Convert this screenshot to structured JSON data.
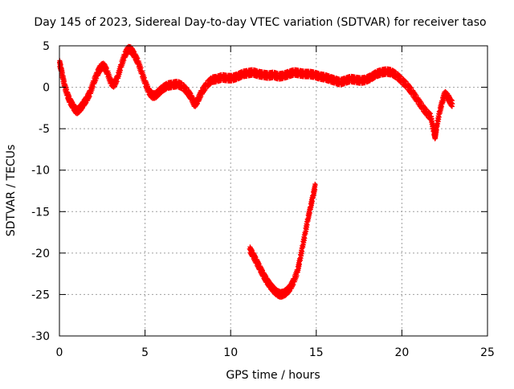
{
  "chart_data": {
    "type": "scatter",
    "title": "Day 145 of 2023, Sidereal Day-to-day VTEC variation (SDTVAR) for receiver taso",
    "xlabel": "GPS time / hours",
    "ylabel": "SDTVAR / TECUs",
    "xlim": [
      0,
      25
    ],
    "ylim": [
      -30,
      5
    ],
    "x_ticks": [
      0,
      5,
      10,
      15,
      20,
      25
    ],
    "y_ticks": [
      5,
      0,
      -5,
      -10,
      -15,
      -20,
      -25,
      -30
    ],
    "x_tick_labels": [
      "0",
      "5",
      "10",
      "15",
      "20",
      "25"
    ],
    "y_tick_labels": [
      "5",
      "0",
      "-5",
      "-10",
      "-15",
      "-20",
      "-25",
      "-30"
    ],
    "grid": true,
    "marker": "+",
    "series": [
      {
        "name": "SDTVAR",
        "color": "#ff0000",
        "points": [
          [
            0.0,
            3.0
          ],
          [
            0.1,
            2.2
          ],
          [
            0.2,
            1.2
          ],
          [
            0.3,
            0.2
          ],
          [
            0.45,
            -0.8
          ],
          [
            0.6,
            -1.6
          ],
          [
            0.8,
            -2.3
          ],
          [
            1.0,
            -2.9
          ],
          [
            1.2,
            -2.6
          ],
          [
            1.4,
            -2.0
          ],
          [
            1.6,
            -1.4
          ],
          [
            1.8,
            -0.6
          ],
          [
            2.0,
            0.6
          ],
          [
            2.2,
            1.6
          ],
          [
            2.4,
            2.4
          ],
          [
            2.6,
            2.6
          ],
          [
            2.8,
            1.8
          ],
          [
            3.0,
            0.6
          ],
          [
            3.2,
            0.3
          ],
          [
            3.4,
            1.2
          ],
          [
            3.6,
            2.6
          ],
          [
            3.8,
            3.8
          ],
          [
            4.0,
            4.6
          ],
          [
            4.2,
            4.5
          ],
          [
            4.4,
            3.8
          ],
          [
            4.6,
            3.0
          ],
          [
            4.8,
            1.8
          ],
          [
            5.0,
            0.6
          ],
          [
            5.2,
            -0.4
          ],
          [
            5.4,
            -1.0
          ],
          [
            5.6,
            -1.0
          ],
          [
            5.8,
            -0.6
          ],
          [
            6.0,
            -0.2
          ],
          [
            6.3,
            0.2
          ],
          [
            6.6,
            0.3
          ],
          [
            6.9,
            0.4
          ],
          [
            7.2,
            0.1
          ],
          [
            7.5,
            -0.6
          ],
          [
            7.7,
            -1.2
          ],
          [
            7.9,
            -2.1
          ],
          [
            8.1,
            -1.5
          ],
          [
            8.3,
            -0.6
          ],
          [
            8.6,
            0.3
          ],
          [
            8.9,
            0.9
          ],
          [
            9.2,
            1.0
          ],
          [
            9.5,
            1.2
          ],
          [
            9.8,
            1.1
          ],
          [
            10.1,
            1.1
          ],
          [
            10.4,
            1.3
          ],
          [
            10.7,
            1.6
          ],
          [
            11.0,
            1.7
          ],
          [
            11.3,
            1.8
          ],
          [
            11.6,
            1.6
          ],
          [
            11.9,
            1.5
          ],
          [
            12.2,
            1.4
          ],
          [
            12.5,
            1.5
          ],
          [
            12.8,
            1.3
          ],
          [
            13.1,
            1.4
          ],
          [
            13.4,
            1.6
          ],
          [
            13.7,
            1.8
          ],
          [
            14.0,
            1.7
          ],
          [
            14.3,
            1.6
          ],
          [
            14.6,
            1.6
          ],
          [
            14.9,
            1.5
          ],
          [
            15.2,
            1.3
          ],
          [
            15.5,
            1.2
          ],
          [
            15.8,
            1.0
          ],
          [
            16.1,
            0.8
          ],
          [
            16.4,
            0.6
          ],
          [
            16.7,
            0.8
          ],
          [
            17.0,
            1.0
          ],
          [
            17.3,
            0.9
          ],
          [
            17.6,
            0.8
          ],
          [
            17.9,
            0.9
          ],
          [
            18.2,
            1.2
          ],
          [
            18.5,
            1.6
          ],
          [
            18.8,
            1.8
          ],
          [
            19.1,
            1.9
          ],
          [
            19.4,
            1.8
          ],
          [
            19.7,
            1.4
          ],
          [
            20.0,
            0.8
          ],
          [
            20.3,
            0.2
          ],
          [
            20.6,
            -0.6
          ],
          [
            20.9,
            -1.5
          ],
          [
            21.2,
            -2.4
          ],
          [
            21.5,
            -3.2
          ],
          [
            21.7,
            -3.6
          ],
          [
            21.85,
            -5.2
          ],
          [
            21.95,
            -6.0
          ],
          [
            22.05,
            -4.6
          ],
          [
            22.2,
            -3.0
          ],
          [
            22.35,
            -1.8
          ],
          [
            22.5,
            -0.8
          ],
          [
            22.7,
            -1.2
          ],
          [
            22.85,
            -1.8
          ],
          [
            22.95,
            -2.0
          ],
          [
            11.1,
            -19.5
          ],
          [
            11.3,
            -20.2
          ],
          [
            11.5,
            -21.0
          ],
          [
            11.7,
            -21.8
          ],
          [
            11.9,
            -22.6
          ],
          [
            12.1,
            -23.3
          ],
          [
            12.3,
            -23.9
          ],
          [
            12.5,
            -24.4
          ],
          [
            12.7,
            -24.8
          ],
          [
            12.9,
            -25.0
          ],
          [
            13.1,
            -24.9
          ],
          [
            13.3,
            -24.6
          ],
          [
            13.5,
            -24.1
          ],
          [
            13.7,
            -23.3
          ],
          [
            13.9,
            -22.2
          ],
          [
            14.05,
            -20.8
          ],
          [
            14.2,
            -19.2
          ],
          [
            14.35,
            -17.6
          ],
          [
            14.5,
            -16.0
          ],
          [
            14.65,
            -14.6
          ],
          [
            14.8,
            -13.2
          ],
          [
            14.95,
            -11.8
          ]
        ]
      }
    ]
  }
}
